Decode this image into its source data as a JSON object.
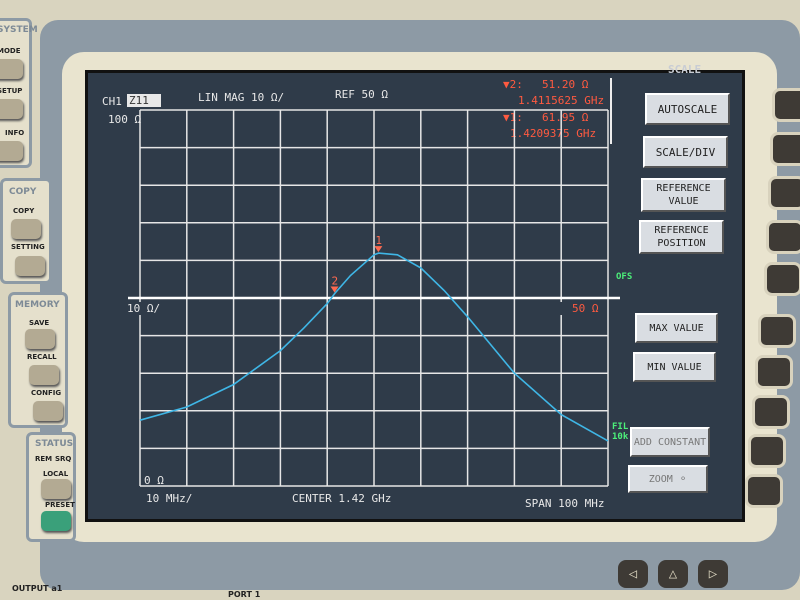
{
  "left_panel": {
    "system": {
      "title": "SYSTEM",
      "buttons": [
        "MODE",
        "SETUP",
        "INFO"
      ]
    },
    "copy": {
      "title": "COPY",
      "buttons": [
        "COPY",
        "SETTING"
      ]
    },
    "memory": {
      "title": "MEMORY",
      "buttons": [
        "SAVE",
        "RECALL",
        "CONFIG"
      ]
    },
    "status": {
      "title": "STATUS",
      "leds": [
        "REM",
        "SRQ"
      ],
      "buttons": [
        "LOCAL",
        "PRESET"
      ]
    }
  },
  "bottom_labels": {
    "output": "OUTPUT a1",
    "port": "PORT 1"
  },
  "header": {
    "channel": "CH1",
    "parameter": "Z11",
    "format": "LIN MAG 10 Ω/",
    "ref": "REF 50 Ω"
  },
  "markers": [
    {
      "label": "▼2:",
      "value": "51.20  Ω",
      "freq": "1.4115625 GHz"
    },
    {
      "label": "▼1:",
      "value": "61.95  Ω",
      "freq": "1.4209375 GHz"
    }
  ],
  "softkeys": {
    "menu_title": "SCALE",
    "items": [
      "AUTOSCALE",
      "SCALE/DIV",
      "REFERENCE VALUE",
      "REFERENCE POSITION",
      "MAX VALUE",
      "MIN VALUE",
      "ADD CONSTANT",
      "ZOOM ⚬"
    ]
  },
  "indicators": {
    "ofs": "OFS",
    "fil": "FIL",
    "fil_bw": "10k"
  },
  "chart_data": {
    "type": "line",
    "title": "",
    "xlabel": "",
    "ylabel": "",
    "top_label": "100 Ω",
    "bottom_label": "0 Ω",
    "scale_label": "10 Ω/",
    "ref_label": "50 Ω",
    "x_div_label": "10 MHz/",
    "center_label": "CENTER 1.42 GHz",
    "span_label": "SPAN 100 MHz",
    "xlim": [
      1.37,
      1.47
    ],
    "ylim": [
      0,
      100
    ],
    "x_unit": "GHz",
    "y_unit": "Ω",
    "grid": true,
    "divisions": {
      "x": 10,
      "y": 10
    },
    "reference": 50,
    "trace_color": "#3fb6e6",
    "x": [
      1.37,
      1.38,
      1.39,
      1.4,
      1.405,
      1.41,
      1.4116,
      1.415,
      1.42,
      1.421,
      1.425,
      1.43,
      1.435,
      1.44,
      1.45,
      1.46,
      1.47
    ],
    "y": [
      17.5,
      21,
      27,
      36,
      42,
      48.5,
      51.2,
      56,
      61.5,
      61.95,
      61.5,
      58,
      52,
      45,
      30,
      19,
      12
    ],
    "marker_points": [
      {
        "id": "1",
        "x": 1.4209375,
        "y": 61.95
      },
      {
        "id": "2",
        "x": 1.4115625,
        "y": 51.2
      }
    ]
  }
}
